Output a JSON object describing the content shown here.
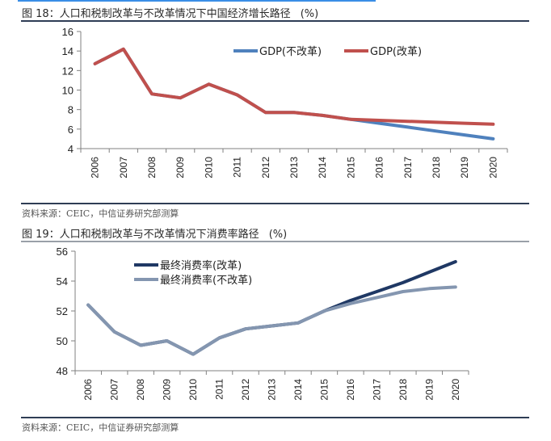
{
  "figures": [
    {
      "title": "图 18：人口和税制改革与不改革情况下中国经济增长路径",
      "unit": "(%)",
      "source": "资料来源：CEIC，中信证券研究部测算"
    },
    {
      "title": "图 19：人口和税制改革与不改革情况下消费率路径",
      "unit": "(%)",
      "source": "资料来源：CEIC，中信证券研究部测算"
    }
  ],
  "colors": {
    "gdp_no_reform": "#4f81bd",
    "gdp_reform": "#c0504d",
    "cons_reform": "#1f3864",
    "cons_no_reform": "#8496b0",
    "axis": "#808080"
  },
  "chart_data": [
    {
      "type": "line",
      "title": "人口和税制改革与不改革情况下中国经济增长路径",
      "xlabel": "",
      "ylabel": "(%)",
      "categories": [
        "2006",
        "2007",
        "2008",
        "2009",
        "2010",
        "2011",
        "2012",
        "2013",
        "2014",
        "2015",
        "2016",
        "2017",
        "2018",
        "2019",
        "2020"
      ],
      "ylim": [
        4,
        16
      ],
      "yticks": [
        4,
        6,
        8,
        10,
        12,
        14,
        16
      ],
      "grid": false,
      "legend_position": "top-right",
      "series": [
        {
          "name": "GDP(不改革)",
          "color_key": "gdp_no_reform",
          "values": [
            12.7,
            14.2,
            9.6,
            9.2,
            10.6,
            9.5,
            7.7,
            7.7,
            7.4,
            7.0,
            6.6,
            6.2,
            5.8,
            5.4,
            5.0
          ]
        },
        {
          "name": "GDP(改革)",
          "color_key": "gdp_reform",
          "values": [
            12.7,
            14.2,
            9.6,
            9.2,
            10.6,
            9.5,
            7.7,
            7.7,
            7.4,
            7.0,
            6.9,
            6.8,
            6.7,
            6.6,
            6.5
          ]
        }
      ]
    },
    {
      "type": "line",
      "title": "人口和税制改革与不改革情况下消费率路径",
      "xlabel": "",
      "ylabel": "(%)",
      "categories": [
        "2006",
        "2007",
        "2008",
        "2009",
        "2010",
        "2011",
        "2012",
        "2013",
        "2014",
        "2015",
        "2016",
        "2017",
        "2018",
        "2019",
        "2020"
      ],
      "ylim": [
        48,
        56
      ],
      "yticks": [
        48,
        50,
        52,
        54,
        56
      ],
      "grid": false,
      "legend_position": "top-center",
      "series": [
        {
          "name": "最终消费率(改革)",
          "color_key": "cons_reform",
          "values": [
            52.4,
            50.6,
            49.7,
            50.0,
            49.1,
            50.2,
            50.8,
            51.0,
            51.2,
            52.0,
            52.7,
            53.3,
            53.9,
            54.6,
            55.3
          ]
        },
        {
          "name": "最终消费率(不改革)",
          "color_key": "cons_no_reform",
          "values": [
            52.4,
            50.6,
            49.7,
            50.0,
            49.1,
            50.2,
            50.8,
            51.0,
            51.2,
            52.0,
            52.5,
            52.9,
            53.3,
            53.5,
            53.6
          ]
        }
      ]
    }
  ]
}
